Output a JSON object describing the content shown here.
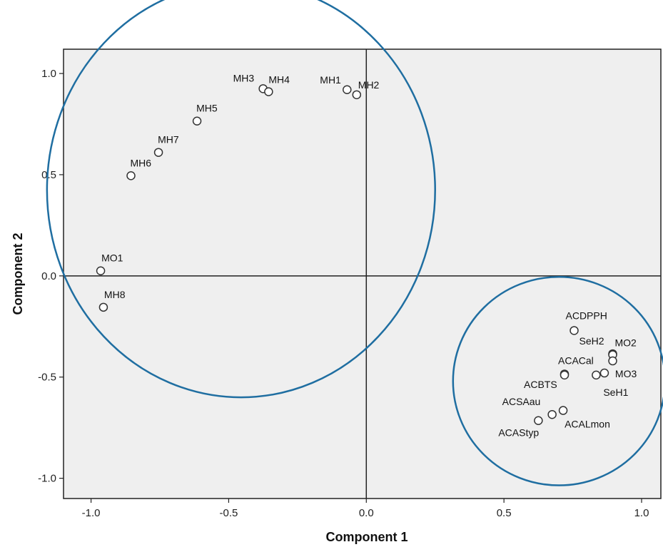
{
  "chart_data": {
    "type": "scatter",
    "title": "",
    "xlabel": "Component 1",
    "ylabel": "Component 2",
    "xlim": [
      -1.1,
      1.07
    ],
    "ylim": [
      -1.1,
      1.12
    ],
    "x_ticks": [
      -1.0,
      -0.5,
      0.0,
      0.5,
      1.0
    ],
    "x_tick_labels": [
      "-1.0",
      "-0.5",
      "0.0",
      "0.5",
      "1.0"
    ],
    "y_ticks": [
      1.0,
      0.5,
      0.0,
      -0.5,
      -1.0
    ],
    "y_tick_labels": [
      "1.0",
      "0.5",
      "0.0",
      "-0.5",
      "-1.0"
    ],
    "grid": false,
    "reference_lines": {
      "x": 0,
      "y": 0
    },
    "points": [
      {
        "label": "MH1",
        "x": -0.07,
        "y": 0.92
      },
      {
        "label": "MH2",
        "x": -0.035,
        "y": 0.895
      },
      {
        "label": "MH3",
        "x": -0.375,
        "y": 0.925
      },
      {
        "label": "MH4",
        "x": -0.355,
        "y": 0.91
      },
      {
        "label": "MH5",
        "x": -0.615,
        "y": 0.765
      },
      {
        "label": "MH7",
        "x": -0.755,
        "y": 0.61
      },
      {
        "label": "MH6",
        "x": -0.855,
        "y": 0.495
      },
      {
        "label": "MO1",
        "x": -0.965,
        "y": 0.025
      },
      {
        "label": "MH8",
        "x": -0.955,
        "y": -0.155
      },
      {
        "label": "ACDPPH",
        "x": 0.755,
        "y": -0.27
      },
      {
        "label": "SeH2",
        "x": 0.895,
        "y": -0.385
      },
      {
        "label": "MO2",
        "x": 0.895,
        "y": -0.39
      },
      {
        "label": "",
        "x": 0.895,
        "y": -0.42
      },
      {
        "label": "MO3",
        "x": 0.865,
        "y": -0.48
      },
      {
        "label": "SeH1",
        "x": 0.835,
        "y": -0.49
      },
      {
        "label": "ACACal",
        "x": 0.72,
        "y": -0.485
      },
      {
        "label": "ACBTS",
        "x": 0.72,
        "y": -0.49
      },
      {
        "label": "ACALmon",
        "x": 0.715,
        "y": -0.665
      },
      {
        "label": "ACSAau",
        "x": 0.675,
        "y": -0.685
      },
      {
        "label": "ACAStyp",
        "x": 0.625,
        "y": -0.715
      }
    ],
    "annotations": [
      {
        "shape": "ellipse",
        "cx": -0.455,
        "cy": 0.425,
        "rx": 0.705,
        "ry": 1.025,
        "color": "#1f6ea1"
      },
      {
        "shape": "ellipse",
        "cx": 0.7,
        "cy": -0.52,
        "rx": 0.385,
        "ry": 0.515,
        "color": "#1f6ea1"
      }
    ],
    "colors": {
      "plot_background": "#efefef",
      "axis": "#222222",
      "marker_fill": "#ffffff",
      "marker_stroke": "#333333",
      "ellipse": "#1f6ea1"
    }
  }
}
